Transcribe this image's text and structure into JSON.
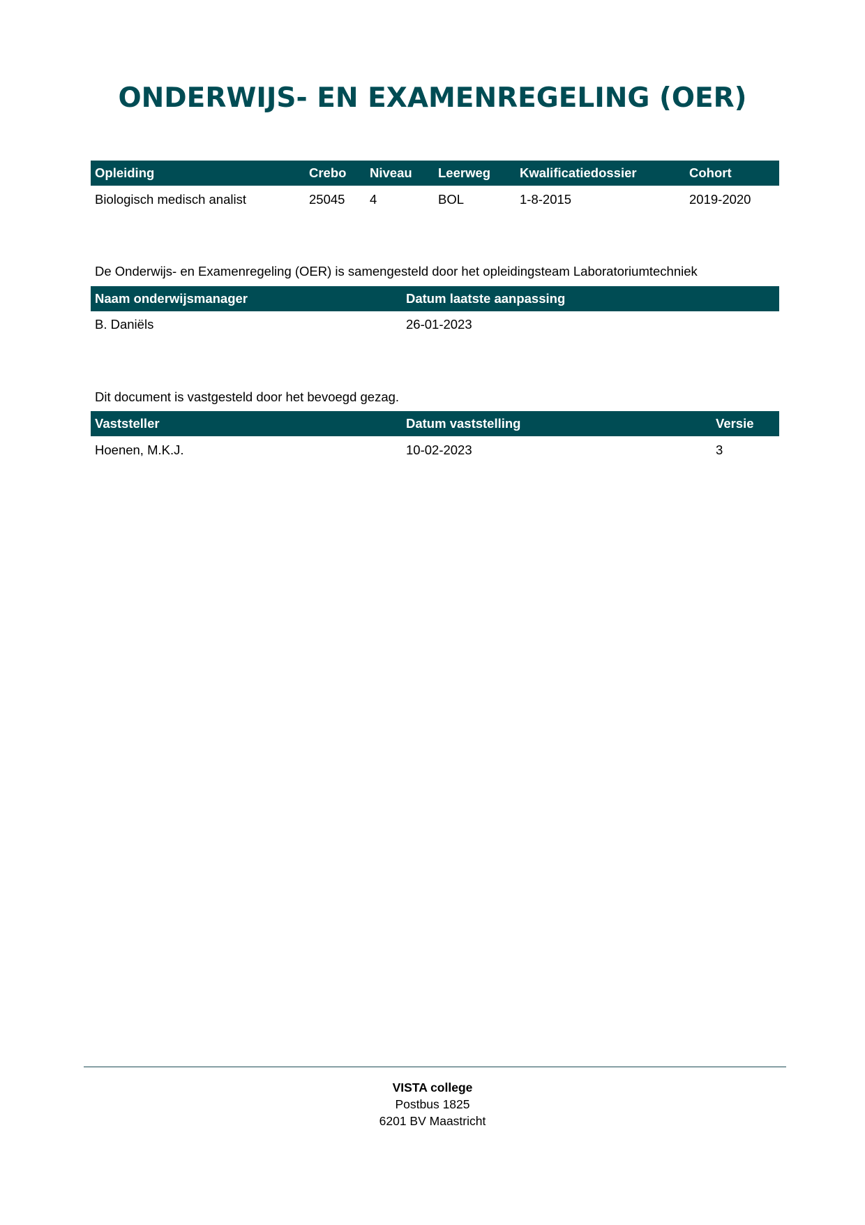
{
  "title": "ONDERWIJS- EN EXAMENREGELING (OER)",
  "table1": {
    "headers": [
      "Opleiding",
      "Crebo",
      "Niveau",
      "Leerweg",
      "Kwalificatiedossier",
      "Cohort"
    ],
    "row": [
      "Biologisch medisch analist",
      "25045",
      "4",
      "BOL",
      "1-8-2015",
      "2019-2020"
    ]
  },
  "para1": "De Onderwijs- en Examenregeling (OER) is samengesteld door het opleidingsteam Laboratoriumtechniek",
  "table2": {
    "headers": [
      "Naam onderwijsmanager",
      "Datum laatste aanpassing"
    ],
    "row": [
      "B. Daniëls",
      "26-01-2023"
    ]
  },
  "para2": "Dit document is vastgesteld door het bevoegd gezag.",
  "table3": {
    "headers": [
      "Vaststeller",
      "Datum vaststelling",
      "Versie"
    ],
    "row": [
      "Hoenen, M.K.J.",
      "10-02-2023",
      "3"
    ]
  },
  "footer": {
    "name": "VISTA college",
    "address1": "Postbus 1825",
    "address2": "6201 BV Maastricht"
  },
  "colors": {
    "accent": "#004c54"
  }
}
